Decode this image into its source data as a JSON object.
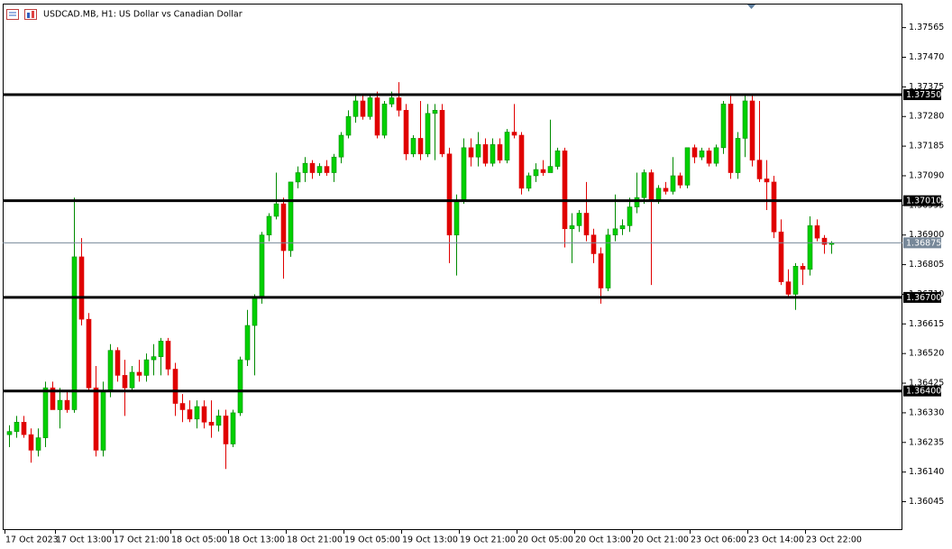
{
  "chart_data": {
    "type": "candlestick",
    "title": "USDCAD.MB, H1:  US Dollar vs Canadian Dollar",
    "up_color": "#00d000",
    "down_color": "#e00000",
    "categories": [
      "17 Oct 2023",
      null,
      null,
      null,
      null,
      null,
      null,
      "17 Oct 13:00",
      null,
      null,
      null,
      null,
      null,
      null,
      null,
      "17 Oct 21:00",
      null,
      null,
      null,
      null,
      null,
      null,
      null,
      "18 Oct 05:00",
      null,
      null,
      null,
      null,
      null,
      null,
      null,
      "18 Oct 13:00",
      null,
      null,
      null,
      null,
      null,
      null,
      null,
      "18 Oct 21:00",
      null,
      null,
      null,
      null,
      null,
      null,
      null,
      "19 Oct 05:00",
      null,
      null,
      null,
      null,
      null,
      null,
      null,
      "19 Oct 13:00",
      null,
      null,
      null,
      null,
      null,
      null,
      null,
      "19 Oct 21:00",
      null,
      null,
      null,
      null,
      null,
      null,
      null,
      "20 Oct 05:00",
      null,
      null,
      null,
      null,
      null,
      null,
      null,
      "20 Oct 13:00",
      null,
      null,
      null,
      null,
      null,
      null,
      null,
      "20 Oct 21:00",
      null,
      null,
      null,
      null,
      null,
      null,
      null,
      "23 Oct 06:00",
      null,
      null,
      null,
      null,
      null,
      null,
      null,
      "23 Oct 14:00",
      null,
      null,
      null,
      null,
      null,
      null,
      null,
      "23 Oct 22:00",
      null,
      null,
      null
    ],
    "open": [
      1.3626,
      1.3627,
      1.363,
      1.3626,
      1.3621,
      1.3625,
      1.3641,
      1.3634,
      1.3637,
      1.3634,
      1.3683,
      1.3663,
      1.3641,
      1.3621,
      1.364,
      1.3653,
      1.3645,
      1.3641,
      1.3646,
      1.3645,
      1.365,
      1.3651,
      1.3656,
      1.3647,
      1.3636,
      1.3634,
      1.3631,
      1.3635,
      1.363,
      1.3629,
      1.3632,
      1.3623,
      1.3633,
      1.365,
      1.3661,
      1.367,
      1.369,
      1.3696,
      1.37,
      1.3685,
      1.3707,
      1.371,
      1.3713,
      1.371,
      1.3712,
      1.371,
      1.3715,
      1.3722,
      1.3728,
      1.3733,
      1.3728,
      1.3734,
      1.3722,
      1.3732,
      1.3734,
      1.373,
      1.3716,
      1.3721,
      1.3716,
      1.3729,
      1.373,
      1.3716,
      1.369,
      1.3701,
      1.3718,
      1.3715,
      1.3719,
      1.3713,
      1.3719,
      1.3714,
      1.3723,
      1.3722,
      1.3705,
      1.3709,
      1.3711,
      1.371,
      1.3712,
      1.3717,
      1.3692,
      1.3693,
      1.3697,
      1.369,
      1.3684,
      1.3673,
      1.369,
      1.3692,
      1.3693,
      1.3699,
      1.3702,
      1.371,
      1.3701,
      1.3705,
      1.3704,
      1.3709,
      1.3706,
      1.3718,
      1.3715,
      1.3717,
      1.3713,
      1.3718,
      1.3732,
      1.371,
      1.3721,
      1.3733,
      1.3714,
      1.3708,
      1.3707,
      1.3691,
      1.3675,
      1.3671,
      1.368,
      1.3679,
      1.3693,
      1.3689,
      1.3687
    ],
    "high": [
      1.3629,
      1.3632,
      1.3632,
      1.3628,
      1.3628,
      1.3643,
      1.3643,
      1.3641,
      1.364,
      1.3702,
      1.3689,
      1.3665,
      1.3648,
      1.3643,
      1.3655,
      1.3654,
      1.365,
      1.3648,
      1.365,
      1.3652,
      1.3655,
      1.3657,
      1.3657,
      1.3649,
      1.3639,
      1.3637,
      1.3637,
      1.3637,
      1.3637,
      1.3634,
      1.3634,
      1.3634,
      1.3651,
      1.3666,
      1.3671,
      1.3691,
      1.3697,
      1.371,
      1.3702,
      1.3707,
      1.3712,
      1.3715,
      1.3714,
      1.3713,
      1.3714,
      1.3716,
      1.3723,
      1.373,
      1.3735,
      1.3735,
      1.3735,
      1.3736,
      1.3733,
      1.3736,
      1.3739,
      1.3732,
      1.3722,
      1.3733,
      1.3732,
      1.3732,
      1.3732,
      1.3718,
      1.3703,
      1.3721,
      1.3721,
      1.3723,
      1.3721,
      1.3721,
      1.3721,
      1.3724,
      1.3732,
      1.3723,
      1.371,
      1.3713,
      1.3714,
      1.3727,
      1.3718,
      1.3718,
      1.3697,
      1.3698,
      1.3707,
      1.3692,
      1.3686,
      1.3692,
      1.3703,
      1.3695,
      1.3702,
      1.371,
      1.3711,
      1.3711,
      1.3706,
      1.3707,
      1.3715,
      1.371,
      1.3718,
      1.3719,
      1.3718,
      1.3718,
      1.3719,
      1.3733,
      1.3735,
      1.3723,
      1.3735,
      1.3735,
      1.3733,
      1.3714,
      1.3709,
      1.3695,
      1.3679,
      1.3681,
      1.3681,
      1.3696,
      1.3695,
      1.369,
      1.3688
    ],
    "low": [
      1.3622,
      1.3625,
      1.3625,
      1.3617,
      1.3619,
      1.3622,
      1.3634,
      1.3628,
      1.3633,
      1.3633,
      1.3661,
      1.364,
      1.3619,
      1.3619,
      1.3638,
      1.3643,
      1.3632,
      1.364,
      1.3643,
      1.3643,
      1.3645,
      1.3645,
      1.3645,
      1.3632,
      1.363,
      1.363,
      1.3628,
      1.3628,
      1.3625,
      1.3627,
      1.3615,
      1.3622,
      1.3632,
      1.3648,
      1.3645,
      1.3668,
      1.3688,
      1.3695,
      1.3676,
      1.3683,
      1.3705,
      1.3707,
      1.3708,
      1.3709,
      1.3709,
      1.3707,
      1.3713,
      1.3721,
      1.3726,
      1.3727,
      1.3727,
      1.3721,
      1.3721,
      1.3731,
      1.3728,
      1.3714,
      1.3715,
      1.3714,
      1.3715,
      1.3714,
      1.3715,
      1.3681,
      1.3677,
      1.37,
      1.3712,
      1.3712,
      1.3712,
      1.3712,
      1.3713,
      1.3713,
      1.3721,
      1.3703,
      1.3704,
      1.3707,
      1.3709,
      1.371,
      1.3711,
      1.3686,
      1.3681,
      1.3691,
      1.3688,
      1.3681,
      1.3668,
      1.3672,
      1.3688,
      1.369,
      1.3691,
      1.3697,
      1.37,
      1.3674,
      1.37,
      1.3703,
      1.3703,
      1.3705,
      1.3705,
      1.3713,
      1.3714,
      1.3712,
      1.3712,
      1.3716,
      1.3708,
      1.3708,
      1.3715,
      1.3712,
      1.3707,
      1.3698,
      1.3689,
      1.3674,
      1.367,
      1.3666,
      1.3674,
      1.3677,
      1.3688,
      1.3684,
      1.3684
    ],
    "close": [
      1.3627,
      1.363,
      1.3626,
      1.3621,
      1.3625,
      1.3641,
      1.3634,
      1.3637,
      1.3634,
      1.3683,
      1.3663,
      1.3641,
      1.3621,
      1.364,
      1.3653,
      1.3645,
      1.3641,
      1.3646,
      1.3645,
      1.365,
      1.3651,
      1.3656,
      1.3647,
      1.3636,
      1.3634,
      1.3631,
      1.3635,
      1.363,
      1.3629,
      1.3632,
      1.3623,
      1.3633,
      1.365,
      1.3661,
      1.367,
      1.369,
      1.3696,
      1.37,
      1.3685,
      1.3707,
      1.371,
      1.3713,
      1.371,
      1.3712,
      1.371,
      1.3715,
      1.3722,
      1.3728,
      1.3733,
      1.3728,
      1.3734,
      1.3722,
      1.3732,
      1.3734,
      1.373,
      1.3716,
      1.3721,
      1.3716,
      1.3729,
      1.373,
      1.3716,
      1.369,
      1.3701,
      1.3718,
      1.3715,
      1.3719,
      1.3713,
      1.3719,
      1.3714,
      1.3723,
      1.3722,
      1.3705,
      1.3709,
      1.3711,
      1.371,
      1.3712,
      1.3717,
      1.3692,
      1.3693,
      1.3697,
      1.369,
      1.3684,
      1.3673,
      1.369,
      1.3692,
      1.3693,
      1.3699,
      1.3702,
      1.371,
      1.3701,
      1.3705,
      1.3704,
      1.3709,
      1.3706,
      1.3718,
      1.3715,
      1.3717,
      1.3713,
      1.3718,
      1.3732,
      1.371,
      1.3721,
      1.3733,
      1.3714,
      1.3708,
      1.3707,
      1.3691,
      1.3675,
      1.3671,
      1.368,
      1.3679,
      1.3693,
      1.3689,
      1.3687,
      1.36875
    ],
    "ylim": [
      1.35954,
      1.37642
    ],
    "yticks": [
      1.37565,
      {
        "value": 1.3747,
        "label": "1.37470"
      },
      1.37375,
      {
        "value": 1.3728,
        "label": "1.37280"
      },
      1.37185,
      {
        "value": 1.3709,
        "label": "1.37090"
      },
      1.36995,
      {
        "value": 1.369,
        "label": "1.36900"
      },
      1.36805,
      {
        "value": 1.3671,
        "label": "1.36710"
      },
      1.36615,
      {
        "value": 1.3652,
        "label": "1.36520"
      },
      1.36425,
      {
        "value": 1.3633,
        "label": "1.36330"
      },
      1.36235,
      {
        "value": 1.3614,
        "label": "1.36140"
      },
      1.36045
    ],
    "levels": [
      {
        "value": 1.3735,
        "label": "1.37350"
      },
      {
        "value": 1.3701,
        "label": "1.37010"
      },
      {
        "value": 1.367,
        "label": "1.36700"
      },
      {
        "value": 1.364,
        "label": "1.36400"
      }
    ],
    "bid": 1.36875,
    "grid": false
  }
}
